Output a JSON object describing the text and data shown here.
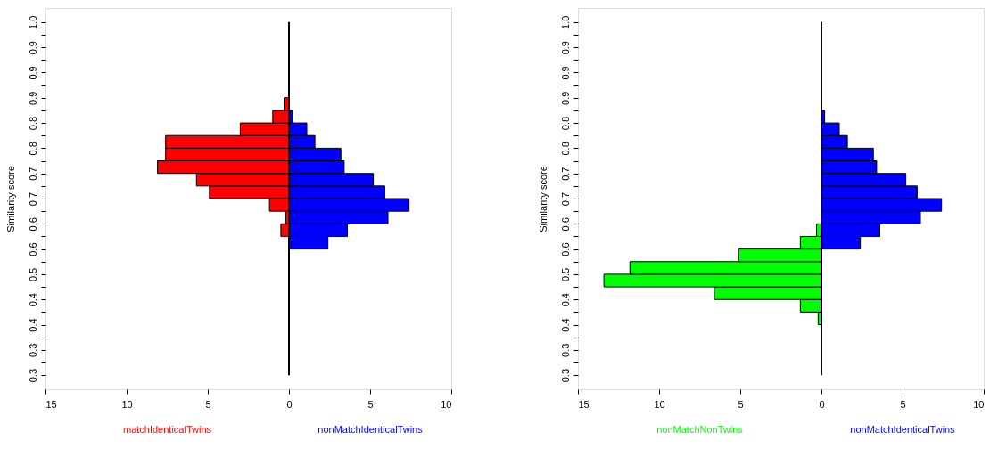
{
  "chart_data": [
    {
      "type": "histogram",
      "orientation": "horizontal",
      "ylabel": "Similarity score",
      "grid": false,
      "bins": [
        0.3,
        0.325,
        0.35,
        0.375,
        0.4,
        0.425,
        0.45,
        0.475,
        0.5,
        0.525,
        0.55,
        0.575,
        0.6,
        0.625,
        0.65,
        0.675,
        0.7,
        0.725,
        0.75,
        0.775,
        0.8,
        0.825,
        0.85,
        0.875,
        0.9,
        0.925,
        0.95,
        0.975,
        1.0
      ],
      "series": [
        {
          "name": "matchIdenticalTwins",
          "color": "#ff0000",
          "values": [
            null,
            null,
            null,
            null,
            null,
            null,
            null,
            null,
            null,
            null,
            null,
            -0.5,
            -0.2,
            -1.2,
            -4.9,
            -5.7,
            -8.1,
            -7.6,
            -7.6,
            -3.0,
            -1.0,
            -0.3,
            null,
            null,
            null,
            null,
            null,
            null
          ]
        },
        {
          "name": "nonMatchIdenticalTwins",
          "color": "#0000ff",
          "values": [
            null,
            null,
            null,
            null,
            null,
            null,
            null,
            null,
            null,
            null,
            2.4,
            3.6,
            6.1,
            7.4,
            5.9,
            5.2,
            3.4,
            3.2,
            1.6,
            1.1,
            0.2,
            null,
            null,
            null,
            null,
            null,
            null,
            null
          ]
        }
      ],
      "ref_lines": [
        {
          "axis": "x",
          "value": 0
        }
      ],
      "xlim": [
        -15,
        10
      ],
      "xticks": [
        {
          "value": -15,
          "label": "15"
        },
        {
          "value": -10,
          "label": "10"
        },
        {
          "value": -5,
          "label": "5"
        },
        0,
        5,
        10
      ],
      "ylim": [
        0.272,
        1.028
      ],
      "yticks": [
        {
          "value": 0.3,
          "label": "0.3"
        },
        {
          "value": 0.325,
          "label": null
        },
        {
          "value": 0.35,
          "label": "0.3"
        },
        {
          "value": 0.375,
          "label": null
        },
        {
          "value": 0.4,
          "label": "0.4"
        },
        {
          "value": 0.425,
          "label": null
        },
        {
          "value": 0.45,
          "label": "0.4"
        },
        {
          "value": 0.475,
          "label": null
        },
        {
          "value": 0.5,
          "label": "0.5"
        },
        {
          "value": 0.525,
          "label": null
        },
        {
          "value": 0.55,
          "label": "0.6"
        },
        {
          "value": 0.575,
          "label": null
        },
        {
          "value": 0.6,
          "label": "0.6"
        },
        {
          "value": 0.625,
          "label": null
        },
        {
          "value": 0.65,
          "label": "0.7"
        },
        {
          "value": 0.675,
          "label": null
        },
        {
          "value": 0.7,
          "label": "0.7"
        },
        {
          "value": 0.725,
          "label": null
        },
        {
          "value": 0.75,
          "label": "0.8"
        },
        {
          "value": 0.775,
          "label": null
        },
        {
          "value": 0.8,
          "label": "0.8"
        },
        {
          "value": 0.825,
          "label": null
        },
        {
          "value": 0.85,
          "label": "0.9"
        },
        {
          "value": 0.875,
          "label": null
        },
        {
          "value": 0.9,
          "label": "0.9"
        },
        {
          "value": 0.925,
          "label": null
        },
        {
          "value": 0.95,
          "label": "0.9"
        },
        {
          "value": 0.975,
          "label": null
        },
        {
          "value": 1.0,
          "label": "1.0"
        }
      ]
    },
    {
      "type": "histogram",
      "orientation": "horizontal",
      "ylabel": "Similarity score",
      "grid": false,
      "bins": [
        0.3,
        0.325,
        0.35,
        0.375,
        0.4,
        0.425,
        0.45,
        0.475,
        0.5,
        0.525,
        0.55,
        0.575,
        0.6,
        0.625,
        0.65,
        0.675,
        0.7,
        0.725,
        0.75,
        0.775,
        0.8,
        0.825,
        0.85,
        0.875,
        0.9,
        0.925,
        0.95,
        0.975,
        1.0
      ],
      "series": [
        {
          "name": "nonMatchNonTwins",
          "color": "#00ff00",
          "values": [
            null,
            null,
            null,
            null,
            -0.2,
            -1.3,
            -6.6,
            -13.4,
            -11.8,
            -5.1,
            -1.3,
            -0.3,
            null,
            null,
            null,
            null,
            null,
            null,
            null,
            null,
            null,
            null,
            null,
            null,
            null,
            null,
            null,
            null
          ]
        },
        {
          "name": "nonMatchIdenticalTwins",
          "color": "#0000ff",
          "values": [
            null,
            null,
            null,
            null,
            null,
            null,
            null,
            null,
            null,
            null,
            2.4,
            3.6,
            6.1,
            7.4,
            5.9,
            5.2,
            3.4,
            3.2,
            1.6,
            1.1,
            0.2,
            null,
            null,
            null,
            null,
            null,
            null,
            null
          ]
        }
      ],
      "ref_lines": [
        {
          "axis": "x",
          "value": 0
        }
      ],
      "xlim": [
        -15,
        10
      ],
      "xticks": [
        {
          "value": -15,
          "label": "15"
        },
        {
          "value": -10,
          "label": "10"
        },
        {
          "value": -5,
          "label": "5"
        },
        0,
        5,
        10
      ],
      "ylim": [
        0.272,
        1.028
      ],
      "yticks": [
        {
          "value": 0.3,
          "label": "0.3"
        },
        {
          "value": 0.325,
          "label": null
        },
        {
          "value": 0.35,
          "label": "0.3"
        },
        {
          "value": 0.375,
          "label": null
        },
        {
          "value": 0.4,
          "label": "0.4"
        },
        {
          "value": 0.425,
          "label": null
        },
        {
          "value": 0.45,
          "label": "0.4"
        },
        {
          "value": 0.475,
          "label": null
        },
        {
          "value": 0.5,
          "label": "0.5"
        },
        {
          "value": 0.525,
          "label": null
        },
        {
          "value": 0.55,
          "label": "0.6"
        },
        {
          "value": 0.575,
          "label": null
        },
        {
          "value": 0.6,
          "label": "0.6"
        },
        {
          "value": 0.625,
          "label": null
        },
        {
          "value": 0.65,
          "label": "0.7"
        },
        {
          "value": 0.675,
          "label": null
        },
        {
          "value": 0.7,
          "label": "0.7"
        },
        {
          "value": 0.725,
          "label": null
        },
        {
          "value": 0.75,
          "label": "0.8"
        },
        {
          "value": 0.775,
          "label": null
        },
        {
          "value": 0.8,
          "label": "0.8"
        },
        {
          "value": 0.825,
          "label": null
        },
        {
          "value": 0.85,
          "label": "0.9"
        },
        {
          "value": 0.875,
          "label": null
        },
        {
          "value": 0.9,
          "label": "0.9"
        },
        {
          "value": 0.925,
          "label": null
        },
        {
          "value": 0.95,
          "label": "0.9"
        },
        {
          "value": 0.975,
          "label": null
        },
        {
          "value": 1.0,
          "label": "1.0"
        }
      ]
    }
  ]
}
